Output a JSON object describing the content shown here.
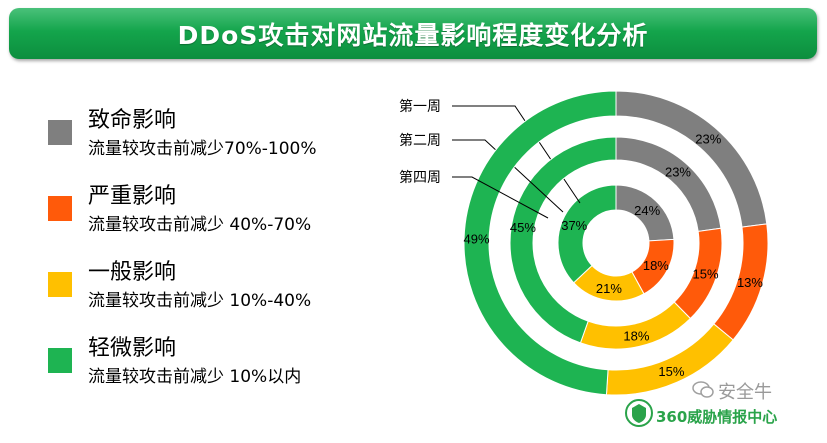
{
  "title": "DDoS攻击对网站流量影响程度变化分析",
  "legend": [
    {
      "name": "致命影响",
      "desc": "流量较攻击前减少70%-100%",
      "color": "#7f7f7f"
    },
    {
      "name": "严重影响",
      "desc": "流量较攻击前减少 40%-70%",
      "color": "#ff5a0a"
    },
    {
      "name": "一般影响",
      "desc": "流量较攻击前减少 10%-40%",
      "color": "#ffc000"
    },
    {
      "name": "轻微影响",
      "desc": "流量较攻击前减少 10%以内",
      "color": "#1eb452"
    }
  ],
  "chart_data": {
    "type": "donut",
    "title": "DDoS攻击对网站流量影响程度变化分析",
    "categories": [
      "致命影响",
      "严重影响",
      "一般影响",
      "轻微影响"
    ],
    "colors": [
      "#7f7f7f",
      "#ff5a0a",
      "#ffc000",
      "#1eb452"
    ],
    "series": [
      {
        "name": "第一周",
        "values": [
          24,
          18,
          21,
          37
        ],
        "labels": [
          "24%",
          "18%",
          "21%",
          "37%"
        ]
      },
      {
        "name": "第二周",
        "values": [
          23,
          15,
          18,
          45
        ],
        "labels": [
          "23%",
          "15%",
          "18%",
          "45%"
        ]
      },
      {
        "name": "第四周",
        "values": [
          23,
          13,
          15,
          49
        ],
        "labels": [
          "23%",
          "13%",
          "15%",
          "49%"
        ]
      }
    ]
  },
  "watermark": {
    "top": "安全牛",
    "bottom": "360威胁情报中心"
  }
}
